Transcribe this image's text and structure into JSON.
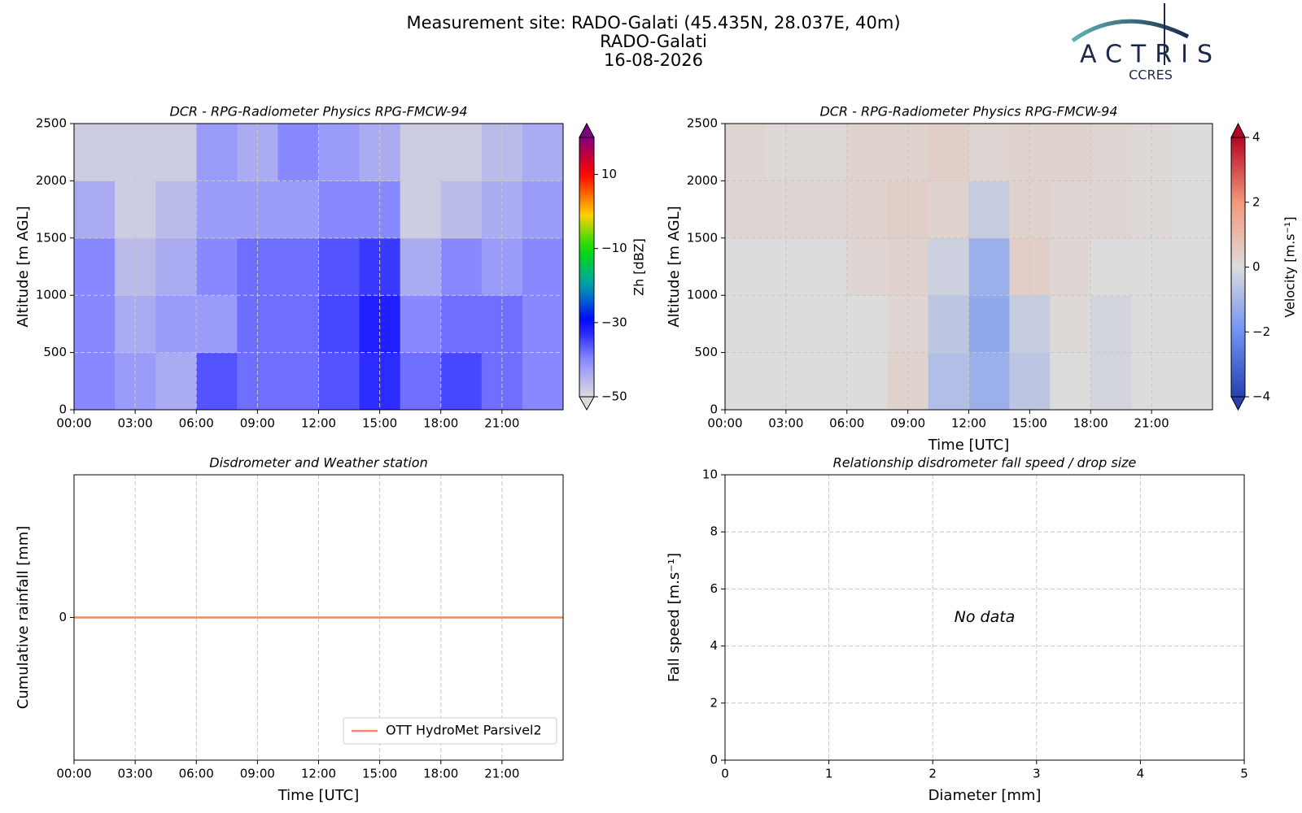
{
  "header": {
    "title": [
      "Measurement site: RADO-Galati (45.435N, 28.037E, 40m)",
      "RADO-Galati",
      "16-08-2026"
    ],
    "logo": "ACTRIS",
    "logo_sub": "CCRES"
  },
  "chart_data": [
    {
      "type": "heatmap",
      "title": "DCR - RPG-Radiometer Physics RPG-FMCW-94",
      "ylabel": "Altitude [m AGL]",
      "colorbar_label": "Zh [dBZ]",
      "colormap": "zh",
      "xbins": [
        0,
        2,
        4,
        6,
        8,
        10,
        12,
        14,
        16,
        18,
        20,
        22,
        24
      ],
      "ybins": [
        0,
        500,
        1000,
        1500,
        2000,
        2500
      ],
      "values": [
        [
          -40,
          -42,
          -44,
          -36,
          -38,
          -38,
          -36,
          -33,
          -38,
          -35,
          -38,
          -40
        ],
        [
          -40,
          -44,
          -42,
          -42,
          -38,
          -38,
          -35,
          -32,
          -40,
          -38,
          -38,
          -40
        ],
        [
          -40,
          -46,
          -44,
          -40,
          -38,
          -38,
          -36,
          -34,
          -44,
          -40,
          -42,
          -40
        ],
        [
          -44,
          -48,
          -46,
          -42,
          -42,
          -42,
          -40,
          -40,
          -48,
          -46,
          -44,
          -42
        ],
        [
          -48,
          -48,
          -48,
          -42,
          -44,
          -40,
          -42,
          -44,
          -48,
          -48,
          -46,
          -44
        ]
      ],
      "xlim": [
        0,
        24
      ],
      "ylim": [
        0,
        2500
      ],
      "xticks": [
        {
          "value": 0,
          "label": "00:00"
        },
        {
          "value": 3,
          "label": "03:00"
        },
        {
          "value": 6,
          "label": "06:00"
        },
        {
          "value": 9,
          "label": "09:00"
        },
        {
          "value": 12,
          "label": "12:00"
        },
        {
          "value": 15,
          "label": "15:00"
        },
        {
          "value": 18,
          "label": "18:00"
        },
        {
          "value": 21,
          "label": "21:00"
        }
      ],
      "yticks": [
        0,
        500,
        1000,
        1500,
        2000,
        2500
      ],
      "clim": [
        -50,
        20
      ],
      "cticks": [
        {
          "value": 10,
          "label": "10"
        },
        {
          "value": -10,
          "label": "−10"
        },
        {
          "value": -30,
          "label": "−30"
        },
        {
          "value": -50,
          "label": "−50"
        }
      ],
      "grid": true
    },
    {
      "type": "heatmap",
      "title": "DCR - RPG-Radiometer Physics RPG-FMCW-94",
      "xlabel": "Time [UTC]",
      "ylabel": "Altitude [m AGL]",
      "colorbar_label": "Velocity [m.s⁻¹]",
      "colormap": "coolwarm",
      "xbins": [
        0,
        2,
        4,
        6,
        8,
        10,
        12,
        14,
        16,
        18,
        20,
        22,
        24
      ],
      "ybins": [
        0,
        500,
        1000,
        1500,
        2000,
        2500
      ],
      "values": [
        [
          0,
          0,
          0,
          0,
          0.3,
          -0.8,
          -1.2,
          -0.6,
          0,
          -0.2,
          0,
          0
        ],
        [
          0,
          0,
          0,
          0,
          0.2,
          -0.6,
          -1.4,
          -0.4,
          0.1,
          -0.2,
          0,
          0
        ],
        [
          0,
          0,
          0,
          0.2,
          0.3,
          -0.3,
          -1.2,
          0.4,
          0.2,
          0,
          0,
          0
        ],
        [
          0.2,
          0.2,
          0.2,
          0.3,
          0.4,
          0.3,
          -0.4,
          0.3,
          0.2,
          0.2,
          0.1,
          0
        ],
        [
          0.2,
          0.1,
          0.1,
          0.3,
          0.3,
          0.4,
          0.2,
          0.3,
          0.3,
          0.2,
          0.1,
          0
        ]
      ],
      "xlim": [
        0,
        24
      ],
      "ylim": [
        0,
        2500
      ],
      "xticks": [
        {
          "value": 0,
          "label": "00:00"
        },
        {
          "value": 3,
          "label": "03:00"
        },
        {
          "value": 6,
          "label": "06:00"
        },
        {
          "value": 9,
          "label": "09:00"
        },
        {
          "value": 12,
          "label": "12:00"
        },
        {
          "value": 15,
          "label": "15:00"
        },
        {
          "value": 18,
          "label": "18:00"
        },
        {
          "value": 21,
          "label": "21:00"
        }
      ],
      "yticks": [
        0,
        500,
        1000,
        1500,
        2000,
        2500
      ],
      "clim": [
        -4,
        4
      ],
      "cticks": [
        4,
        2,
        0,
        {
          "value": -2,
          "label": "−2"
        },
        {
          "value": -4,
          "label": "−4"
        }
      ],
      "grid": true
    },
    {
      "type": "line",
      "title": "Disdrometer and Weather station",
      "xlabel": "Time [UTC]",
      "ylabel": "Cumulative rainfall [mm]",
      "x": [
        0,
        24
      ],
      "series": [
        {
          "name": "OTT HydroMet Parsivel2",
          "color": "#ef8a62",
          "values": [
            0,
            0
          ]
        }
      ],
      "xlim": [
        0,
        24
      ],
      "ylim": [
        -1,
        1
      ],
      "xticks": [
        {
          "value": 0,
          "label": "00:00"
        },
        {
          "value": 3,
          "label": "03:00"
        },
        {
          "value": 6,
          "label": "06:00"
        },
        {
          "value": 9,
          "label": "09:00"
        },
        {
          "value": 12,
          "label": "12:00"
        },
        {
          "value": 15,
          "label": "15:00"
        },
        {
          "value": 18,
          "label": "18:00"
        },
        {
          "value": 21,
          "label": "21:00"
        }
      ],
      "yticks": [
        0
      ],
      "grid": true,
      "legend": "lower-right"
    },
    {
      "type": "scatter",
      "title": "Relationship disdrometer fall speed / drop size",
      "xlabel": "Diameter [mm]",
      "ylabel": "Fall speed [m.s⁻¹]",
      "annotation": "No data",
      "xlim": [
        0,
        5
      ],
      "ylim": [
        0,
        10
      ],
      "xticks": [
        0,
        1,
        2,
        3,
        4,
        5
      ],
      "yticks": [
        0,
        2,
        4,
        6,
        8,
        10
      ],
      "grid": true
    }
  ]
}
